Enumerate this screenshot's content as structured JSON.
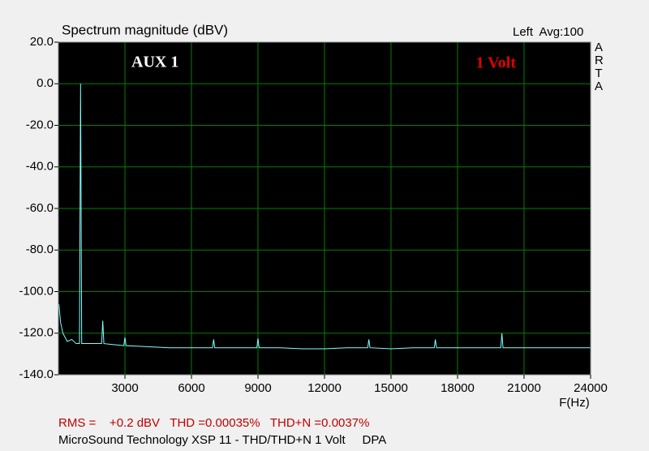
{
  "chart_data": {
    "type": "line",
    "title": "Spectrum magnitude (dBV)",
    "channel_info": "Left  Avg:100",
    "side_label": "ARTA",
    "annotations": [
      {
        "text": "AUX 1",
        "color": "#ffffff"
      },
      {
        "text": "1 Volt",
        "color": "#e00000"
      }
    ],
    "x_label": "F(Hz)",
    "stats": "RMS =    +0.2 dBV   THD =0.00035%   THD+N =0.0037%",
    "footer": "MicroSound Technology XSP 11 - THD/THD+N 1 Volt     DPA",
    "x": [
      20,
      100,
      200,
      400,
      600,
      800,
      950,
      1000,
      1050,
      1500,
      1950,
      2000,
      2050,
      2500,
      2950,
      3000,
      3050,
      4000,
      5000,
      6000,
      6950,
      7000,
      7050,
      8000,
      8950,
      9000,
      9050,
      10000,
      11000,
      12000,
      13000,
      13950,
      14000,
      14050,
      15000,
      16000,
      16950,
      17000,
      17050,
      18000,
      19000,
      19950,
      20000,
      20050,
      21000,
      22000,
      23000,
      24000
    ],
    "values": [
      -106,
      -115,
      -120,
      -124,
      -123,
      -125,
      -125,
      0,
      -125,
      -125,
      -125,
      -114,
      -125,
      -125.5,
      -126,
      -122,
      -126,
      -126.5,
      -127,
      -127,
      -127,
      -123,
      -127,
      -127,
      -127,
      -122.5,
      -127,
      -127,
      -127.5,
      -127.5,
      -127,
      -127,
      -123,
      -127,
      -127.5,
      -127,
      -127,
      -123,
      -127,
      -127,
      -127,
      -127,
      -120,
      -127,
      -127,
      -127,
      -127,
      -127
    ],
    "color": "#80ffff",
    "xlim": [
      0,
      24000
    ],
    "ylim": [
      -140,
      20
    ],
    "xticks": [
      3000,
      6000,
      9000,
      12000,
      15000,
      18000,
      21000,
      24000
    ],
    "yticks": [
      {
        "value": 20,
        "label": "20.0"
      },
      {
        "value": 0,
        "label": "0.0"
      },
      {
        "value": -20,
        "label": "-20.0"
      },
      {
        "value": -40,
        "label": "-40.0"
      },
      {
        "value": -60,
        "label": "-60.0"
      },
      {
        "value": -80,
        "label": "-80.0"
      },
      {
        "value": -100,
        "label": "-100.0"
      },
      {
        "value": -120,
        "label": "-120.0"
      },
      {
        "value": -140,
        "label": "-140.0"
      }
    ],
    "grid": true
  }
}
